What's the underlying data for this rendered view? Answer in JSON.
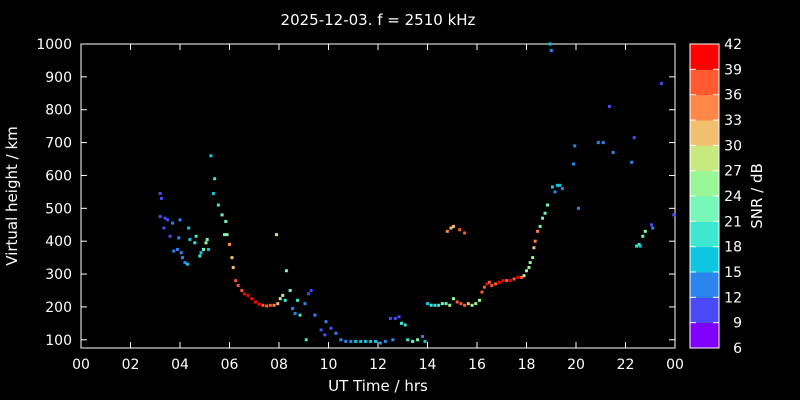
{
  "chart_data": {
    "type": "scatter",
    "title": "2025-12-03. f = 2510 kHz",
    "xlabel": "UT Time / hrs",
    "ylabel": "Virtual height / km",
    "colorbar_label": "SNR / dB",
    "xlim": [
      0,
      24
    ],
    "ylim": [
      75,
      1000
    ],
    "xticks": [
      "00",
      "02",
      "04",
      "06",
      "08",
      "10",
      "12",
      "14",
      "16",
      "18",
      "20",
      "22",
      "00"
    ],
    "yticks": [
      "100",
      "200",
      "300",
      "400",
      "500",
      "600",
      "700",
      "800",
      "900",
      "1000"
    ],
    "colorbar_ticks": [
      "6",
      "9",
      "12",
      "15",
      "18",
      "21",
      "24",
      "27",
      "30",
      "33",
      "36",
      "39",
      "42"
    ],
    "colorbar_colors": [
      "#8000ff",
      "#4a4af6",
      "#2a86ee",
      "#0ec6e0",
      "#3ee8d0",
      "#78f8b8",
      "#98f898",
      "#c8e880",
      "#f0c070",
      "#ff8848",
      "#ff5a30",
      "#ff0000"
    ],
    "grid": false,
    "points": [
      {
        "x": 3.2,
        "y": 545,
        "snr": 11
      },
      {
        "x": 3.25,
        "y": 530,
        "snr": 11
      },
      {
        "x": 3.4,
        "y": 470,
        "snr": 11
      },
      {
        "x": 3.5,
        "y": 465,
        "snr": 11
      },
      {
        "x": 3.2,
        "y": 475,
        "snr": 11
      },
      {
        "x": 3.35,
        "y": 440,
        "snr": 11
      },
      {
        "x": 3.6,
        "y": 415,
        "snr": 11
      },
      {
        "x": 3.7,
        "y": 455,
        "snr": 12
      },
      {
        "x": 3.75,
        "y": 370,
        "snr": 12
      },
      {
        "x": 3.9,
        "y": 375,
        "snr": 12
      },
      {
        "x": 3.95,
        "y": 410,
        "snr": 12
      },
      {
        "x": 4.0,
        "y": 465,
        "snr": 12
      },
      {
        "x": 4.05,
        "y": 365,
        "snr": 13
      },
      {
        "x": 4.1,
        "y": 350,
        "snr": 14
      },
      {
        "x": 4.2,
        "y": 335,
        "snr": 14
      },
      {
        "x": 4.3,
        "y": 330,
        "snr": 15
      },
      {
        "x": 4.35,
        "y": 440,
        "snr": 16
      },
      {
        "x": 4.4,
        "y": 405,
        "snr": 17
      },
      {
        "x": 4.6,
        "y": 395,
        "snr": 18
      },
      {
        "x": 4.65,
        "y": 415,
        "snr": 19
      },
      {
        "x": 4.8,
        "y": 355,
        "snr": 18
      },
      {
        "x": 4.85,
        "y": 365,
        "snr": 17
      },
      {
        "x": 4.95,
        "y": 375,
        "snr": 21
      },
      {
        "x": 5.05,
        "y": 395,
        "snr": 24
      },
      {
        "x": 5.1,
        "y": 405,
        "snr": 22
      },
      {
        "x": 5.15,
        "y": 375,
        "snr": 16
      },
      {
        "x": 5.25,
        "y": 660,
        "snr": 16
      },
      {
        "x": 5.35,
        "y": 545,
        "snr": 17
      },
      {
        "x": 5.4,
        "y": 590,
        "snr": 20
      },
      {
        "x": 5.55,
        "y": 510,
        "snr": 19
      },
      {
        "x": 5.7,
        "y": 480,
        "snr": 21
      },
      {
        "x": 5.8,
        "y": 420,
        "snr": 23
      },
      {
        "x": 5.85,
        "y": 460,
        "snr": 22
      },
      {
        "x": 5.9,
        "y": 420,
        "snr": 24
      },
      {
        "x": 6.0,
        "y": 390,
        "snr": 33
      },
      {
        "x": 6.1,
        "y": 350,
        "snr": 31
      },
      {
        "x": 6.15,
        "y": 320,
        "snr": 32
      },
      {
        "x": 6.25,
        "y": 280,
        "snr": 38
      },
      {
        "x": 6.35,
        "y": 265,
        "snr": 38
      },
      {
        "x": 6.5,
        "y": 250,
        "snr": 38
      },
      {
        "x": 6.6,
        "y": 240,
        "snr": 39
      },
      {
        "x": 6.75,
        "y": 235,
        "snr": 39
      },
      {
        "x": 6.9,
        "y": 225,
        "snr": 39
      },
      {
        "x": 7.05,
        "y": 215,
        "snr": 39
      },
      {
        "x": 7.2,
        "y": 208,
        "snr": 39
      },
      {
        "x": 7.35,
        "y": 205,
        "snr": 38
      },
      {
        "x": 7.5,
        "y": 203,
        "snr": 37
      },
      {
        "x": 7.65,
        "y": 205,
        "snr": 36
      },
      {
        "x": 7.8,
        "y": 205,
        "snr": 33
      },
      {
        "x": 7.95,
        "y": 210,
        "snr": 30
      },
      {
        "x": 8.05,
        "y": 225,
        "snr": 28
      },
      {
        "x": 8.15,
        "y": 235,
        "snr": 27
      },
      {
        "x": 7.9,
        "y": 420,
        "snr": 28
      },
      {
        "x": 8.25,
        "y": 220,
        "snr": 18
      },
      {
        "x": 8.3,
        "y": 310,
        "snr": 22
      },
      {
        "x": 8.45,
        "y": 250,
        "snr": 22
      },
      {
        "x": 8.55,
        "y": 195,
        "snr": 13
      },
      {
        "x": 8.65,
        "y": 180,
        "snr": 12
      },
      {
        "x": 8.75,
        "y": 220,
        "snr": 20
      },
      {
        "x": 8.85,
        "y": 175,
        "snr": 18
      },
      {
        "x": 9.05,
        "y": 210,
        "snr": 12
      },
      {
        "x": 9.2,
        "y": 240,
        "snr": 10
      },
      {
        "x": 9.3,
        "y": 250,
        "snr": 10
      },
      {
        "x": 9.1,
        "y": 100,
        "snr": 19
      },
      {
        "x": 9.45,
        "y": 175,
        "snr": 14
      },
      {
        "x": 9.7,
        "y": 130,
        "snr": 10
      },
      {
        "x": 9.85,
        "y": 115,
        "snr": 11
      },
      {
        "x": 9.9,
        "y": 155,
        "snr": 12
      },
      {
        "x": 10.1,
        "y": 135,
        "snr": 11
      },
      {
        "x": 10.3,
        "y": 120,
        "snr": 13
      },
      {
        "x": 10.5,
        "y": 100,
        "snr": 12
      },
      {
        "x": 10.7,
        "y": 95,
        "snr": 13
      },
      {
        "x": 10.9,
        "y": 95,
        "snr": 14
      },
      {
        "x": 11.1,
        "y": 95,
        "snr": 15
      },
      {
        "x": 11.3,
        "y": 95,
        "snr": 17
      },
      {
        "x": 11.5,
        "y": 95,
        "snr": 16
      },
      {
        "x": 11.7,
        "y": 95,
        "snr": 17
      },
      {
        "x": 11.9,
        "y": 95,
        "snr": 16
      },
      {
        "x": 12.1,
        "y": 90,
        "snr": 14
      },
      {
        "x": 12.3,
        "y": 95,
        "snr": 12
      },
      {
        "x": 12.5,
        "y": 165,
        "snr": 11
      },
      {
        "x": 12.7,
        "y": 165,
        "snr": 11
      },
      {
        "x": 12.85,
        "y": 170,
        "snr": 11
      },
      {
        "x": 12.95,
        "y": 150,
        "snr": 20
      },
      {
        "x": 13.1,
        "y": 145,
        "snr": 19
      },
      {
        "x": 12.6,
        "y": 100,
        "snr": 12
      },
      {
        "x": 13.2,
        "y": 100,
        "snr": 18
      },
      {
        "x": 13.4,
        "y": 95,
        "snr": 21
      },
      {
        "x": 13.6,
        "y": 100,
        "snr": 22
      },
      {
        "x": 13.8,
        "y": 110,
        "snr": 12
      },
      {
        "x": 13.9,
        "y": 95,
        "snr": 17
      },
      {
        "x": 14.0,
        "y": 210,
        "snr": 17
      },
      {
        "x": 14.15,
        "y": 205,
        "snr": 18
      },
      {
        "x": 14.3,
        "y": 205,
        "snr": 19
      },
      {
        "x": 14.45,
        "y": 205,
        "snr": 20
      },
      {
        "x": 14.6,
        "y": 210,
        "snr": 21
      },
      {
        "x": 14.75,
        "y": 210,
        "snr": 22
      },
      {
        "x": 14.9,
        "y": 205,
        "snr": 24
      },
      {
        "x": 15.05,
        "y": 225,
        "snr": 24
      },
      {
        "x": 14.8,
        "y": 430,
        "snr": 33
      },
      {
        "x": 14.95,
        "y": 440,
        "snr": 31
      },
      {
        "x": 15.05,
        "y": 445,
        "snr": 30
      },
      {
        "x": 15.3,
        "y": 435,
        "snr": 38
      },
      {
        "x": 15.5,
        "y": 425,
        "snr": 36
      },
      {
        "x": 15.2,
        "y": 215,
        "snr": 38
      },
      {
        "x": 15.35,
        "y": 210,
        "snr": 37
      },
      {
        "x": 15.5,
        "y": 205,
        "snr": 36
      },
      {
        "x": 15.65,
        "y": 210,
        "snr": 30
      },
      {
        "x": 15.8,
        "y": 205,
        "snr": 25
      },
      {
        "x": 15.95,
        "y": 210,
        "snr": 26
      },
      {
        "x": 16.1,
        "y": 220,
        "snr": 26
      },
      {
        "x": 16.2,
        "y": 245,
        "snr": 36
      },
      {
        "x": 16.3,
        "y": 260,
        "snr": 37
      },
      {
        "x": 16.4,
        "y": 270,
        "snr": 39
      },
      {
        "x": 16.5,
        "y": 275,
        "snr": 37
      },
      {
        "x": 16.6,
        "y": 265,
        "snr": 36
      },
      {
        "x": 16.75,
        "y": 270,
        "snr": 37
      },
      {
        "x": 16.9,
        "y": 275,
        "snr": 39
      },
      {
        "x": 17.05,
        "y": 280,
        "snr": 39
      },
      {
        "x": 17.2,
        "y": 280,
        "snr": 38
      },
      {
        "x": 17.35,
        "y": 280,
        "snr": 39
      },
      {
        "x": 17.5,
        "y": 285,
        "snr": 37
      },
      {
        "x": 17.65,
        "y": 290,
        "snr": 39
      },
      {
        "x": 17.8,
        "y": 290,
        "snr": 38
      },
      {
        "x": 17.9,
        "y": 295,
        "snr": 27
      },
      {
        "x": 18.0,
        "y": 310,
        "snr": 25
      },
      {
        "x": 18.1,
        "y": 320,
        "snr": 25
      },
      {
        "x": 18.15,
        "y": 335,
        "snr": 24
      },
      {
        "x": 18.25,
        "y": 350,
        "snr": 24
      },
      {
        "x": 18.3,
        "y": 380,
        "snr": 30
      },
      {
        "x": 18.35,
        "y": 400,
        "snr": 34
      },
      {
        "x": 18.45,
        "y": 430,
        "snr": 33
      },
      {
        "x": 18.55,
        "y": 445,
        "snr": 22
      },
      {
        "x": 18.65,
        "y": 470,
        "snr": 21
      },
      {
        "x": 18.75,
        "y": 485,
        "snr": 23
      },
      {
        "x": 18.85,
        "y": 510,
        "snr": 22
      },
      {
        "x": 18.95,
        "y": 1000,
        "snr": 16
      },
      {
        "x": 19.0,
        "y": 980,
        "snr": 14
      },
      {
        "x": 19.05,
        "y": 565,
        "snr": 15
      },
      {
        "x": 19.15,
        "y": 550,
        "snr": 13
      },
      {
        "x": 19.25,
        "y": 570,
        "snr": 16
      },
      {
        "x": 19.35,
        "y": 570,
        "snr": 16
      },
      {
        "x": 19.45,
        "y": 560,
        "snr": 14
      },
      {
        "x": 19.9,
        "y": 635,
        "snr": 14
      },
      {
        "x": 19.95,
        "y": 690,
        "snr": 13
      },
      {
        "x": 20.1,
        "y": 500,
        "snr": 12
      },
      {
        "x": 20.9,
        "y": 700,
        "snr": 14
      },
      {
        "x": 21.1,
        "y": 700,
        "snr": 13
      },
      {
        "x": 21.35,
        "y": 810,
        "snr": 10
      },
      {
        "x": 21.5,
        "y": 670,
        "snr": 12
      },
      {
        "x": 22.25,
        "y": 640,
        "snr": 12
      },
      {
        "x": 22.35,
        "y": 715,
        "snr": 11
      },
      {
        "x": 22.45,
        "y": 385,
        "snr": 19
      },
      {
        "x": 22.55,
        "y": 390,
        "snr": 18
      },
      {
        "x": 22.6,
        "y": 385,
        "snr": 17
      },
      {
        "x": 22.7,
        "y": 415,
        "snr": 22
      },
      {
        "x": 22.8,
        "y": 430,
        "snr": 24
      },
      {
        "x": 23.05,
        "y": 450,
        "snr": 11
      },
      {
        "x": 23.1,
        "y": 440,
        "snr": 13
      },
      {
        "x": 23.45,
        "y": 880,
        "snr": 11
      },
      {
        "x": 23.95,
        "y": 480,
        "snr": 11
      }
    ]
  }
}
